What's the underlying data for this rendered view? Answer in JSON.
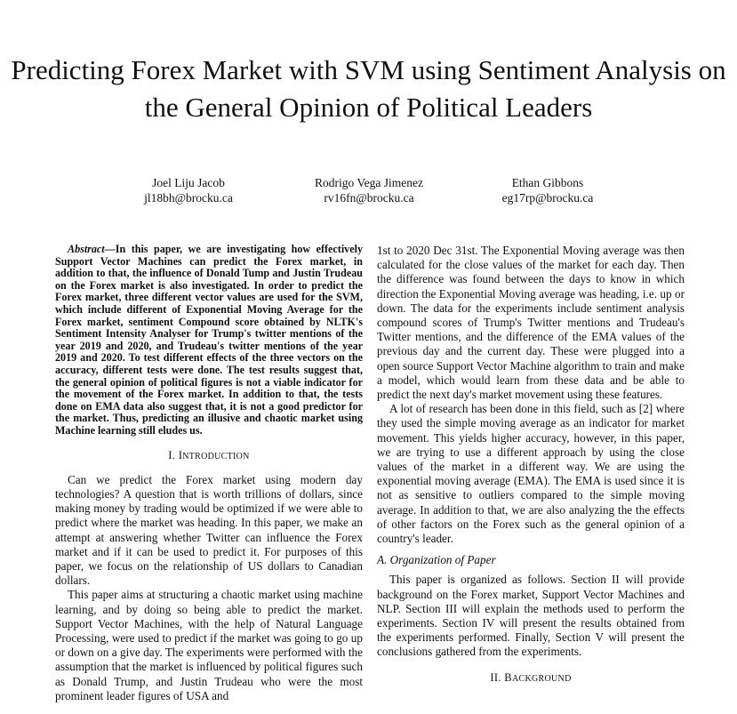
{
  "paper": {
    "title": "Predicting Forex Market with SVM using Sentiment Analysis on the General Opinion of Political Leaders",
    "authors": [
      {
        "name": "Joel Liju Jacob",
        "email": "jl18bh@brocku.ca"
      },
      {
        "name": "Rodrigo Vega Jimenez",
        "email": "rv16fn@brocku.ca"
      },
      {
        "name": "Ethan Gibbons",
        "email": "eg17rp@brocku.ca"
      }
    ],
    "abstract_label": "Abstract",
    "abstract_text": "—In this paper, we are investigating how effectively Support Vector Machines can predict the Forex market, in addition to that, the influence of Donald Tump and Justin Trudeau on the Forex market is also investigated. In order to predict the Forex market, three different vector values are used for the SVM, which include different of Exponential Moving Average for the Forex market, sentiment Compound score obtained by NLTK's Sentiment Intensity Analyser for Trump's twitter mentions of the year 2019 and 2020, and Trudeau's twitter mentions of the year 2019 and 2020. To test different effects of the three vectors on the accuracy, different tests were done. The test results suggest that, the general opinion of political figures is not a viable indicator for the movement of the Forex market. In addition to that, the tests done on EMA data also suggest that, it is not a good predictor for the market. Thus, predicting an illusive and chaotic market using Machine learning still eludes us.",
    "section1": {
      "num": "I.",
      "first": "I",
      "rest": "NTRODUCTION"
    },
    "intro_p1": "Can we predict the Forex market using modern day technologies? A question that is worth trillions of dollars, since making money by trading would be optimized if we were able to predict where the market was heading. In this paper, we make an attempt at answering whether Twitter can influence the Forex market and if it can be used to predict it. For purposes of this paper, we focus on the relationship of US dollars to Canadian dollars.",
    "intro_p2": "This paper aims at structuring a chaotic market using machine learning, and by doing so being able to predict the market. Support Vector Machines, with the help of Natural Language Processing, were used to predict if the market was going to go up or down on a give day. The experiments were performed with the assumption that the market is influenced by political figures such as Donald Trump, and Justin Trudeau who were the most prominent leader figures of USA and",
    "right_p1": "1st to 2020 Dec 31st. The Exponential Moving average was then calculated for the close values of the market for each day. Then the difference was found between the days to know in which direction the Exponential Moving average was heading, i.e. up or down. The data for the experiments include sentiment analysis compound scores of Trump's Twitter mentions and Trudeau's Twitter mentions, and the difference of the EMA values of the previous day and the current day. These were plugged into a open source Support Vector Machine algorithm to train and make a model, which would learn from these data and be able to predict the next day's market movement using these features.",
    "right_p2": "A lot of research has been done in this field, such as [2] where they used the simple moving average as an indicator for market movement. This yields higher accuracy, however, in this paper, we are trying to use a different approach by using the close values of the market in a different way. We are using the exponential moving average (EMA). The EMA is used since it is not as sensitive to outliers compared to the simple moving average. In addition to that, we are also analyzing the the effects of other factors on the Forex such as the general opinion of a country's leader.",
    "subsection_a": "A.  Organization of Paper",
    "right_p3": "This paper is organized as follows. Section II will provide background on the Forex market, Support Vector Machines and NLP. Section III will explain the methods used to perform the experiments. Section IV will present the results obtained from the experiments performed. Finally, Section V will present the conclusions gathered from the experiments.",
    "section2": {
      "num": "II.",
      "first": "B",
      "rest": "ACKGROUND"
    }
  }
}
